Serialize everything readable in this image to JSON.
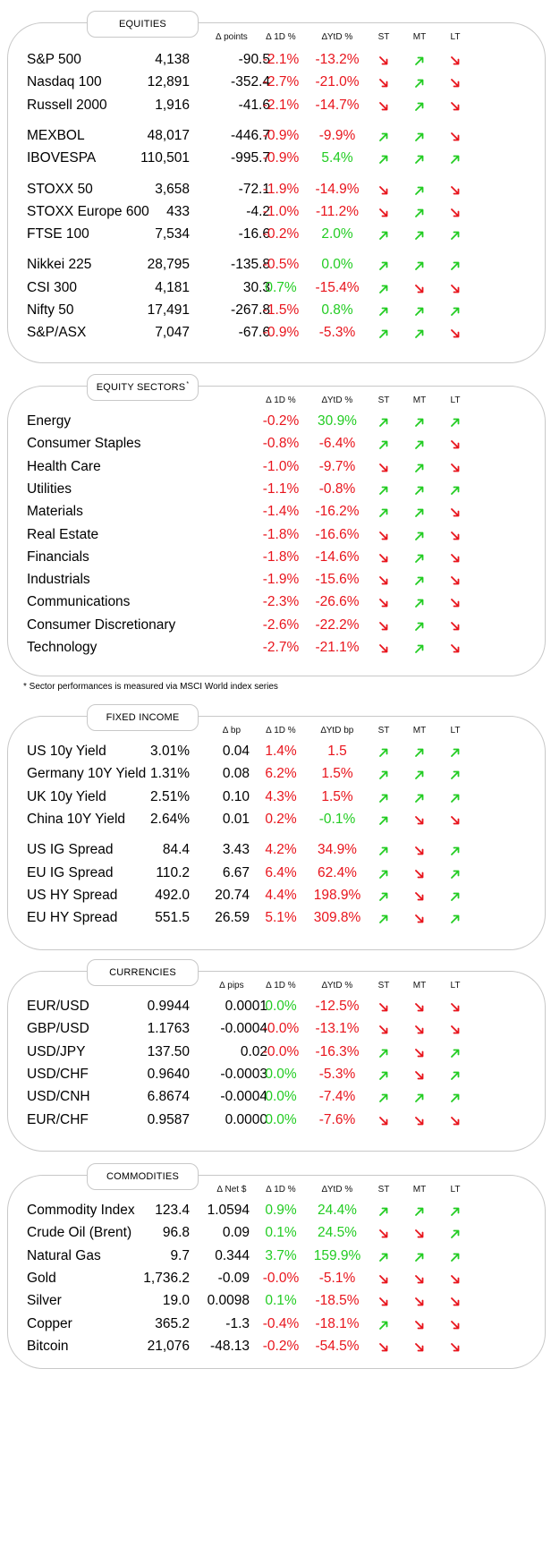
{
  "panels": [
    {
      "id": "equities",
      "title": "EQUITIES",
      "sup": "",
      "headers": {
        "change": "∆ points",
        "d1": "∆ 1D %",
        "ytd": "∆YtD %",
        "st": "ST",
        "mt": "MT",
        "lt": "LT"
      },
      "groups": [
        [
          {
            "name": "S&P 500",
            "value": "4,138",
            "change": "-90.5",
            "d1": "-2.1%",
            "d1c": "red",
            "ytd": "-13.2%",
            "ytdc": "red",
            "st": "down",
            "mt": "up",
            "lt": "down"
          },
          {
            "name": "Nasdaq 100",
            "value": "12,891",
            "change": "-352.4",
            "d1": "-2.7%",
            "d1c": "red",
            "ytd": "-21.0%",
            "ytdc": "red",
            "st": "down",
            "mt": "up",
            "lt": "down"
          },
          {
            "name": "Russell 2000",
            "value": "1,916",
            "change": "-41.6",
            "d1": "-2.1%",
            "d1c": "red",
            "ytd": "-14.7%",
            "ytdc": "red",
            "st": "down",
            "mt": "up",
            "lt": "down"
          }
        ],
        [
          {
            "name": "MEXBOL",
            "value": "48,017",
            "change": "-446.7",
            "d1": "-0.9%",
            "d1c": "red",
            "ytd": "-9.9%",
            "ytdc": "red",
            "st": "up",
            "mt": "up",
            "lt": "down"
          },
          {
            "name": "IBOVESPA",
            "value": "110,501",
            "change": "-995.7",
            "d1": "-0.9%",
            "d1c": "red",
            "ytd": "5.4%",
            "ytdc": "grn",
            "st": "up",
            "mt": "up",
            "lt": "up"
          }
        ],
        [
          {
            "name": "STOXX 50",
            "value": "3,658",
            "change": "-72.1",
            "d1": "-1.9%",
            "d1c": "red",
            "ytd": "-14.9%",
            "ytdc": "red",
            "st": "down",
            "mt": "up",
            "lt": "down"
          },
          {
            "name": "STOXX Europe 600",
            "value": "433",
            "change": "-4.2",
            "d1": "-1.0%",
            "d1c": "red",
            "ytd": "-11.2%",
            "ytdc": "red",
            "st": "down",
            "mt": "up",
            "lt": "down"
          },
          {
            "name": "FTSE 100",
            "value": "7,534",
            "change": "-16.6",
            "d1": "-0.2%",
            "d1c": "red",
            "ytd": "2.0%",
            "ytdc": "grn",
            "st": "up",
            "mt": "up",
            "lt": "up"
          }
        ],
        [
          {
            "name": "Nikkei 225",
            "value": "28,795",
            "change": "-135.8",
            "d1": "-0.5%",
            "d1c": "red",
            "ytd": "0.0%",
            "ytdc": "grn",
            "st": "up",
            "mt": "up",
            "lt": "up"
          },
          {
            "name": "CSI 300",
            "value": "4,181",
            "change": "30.3",
            "d1": "0.7%",
            "d1c": "grn",
            "ytd": "-15.4%",
            "ytdc": "red",
            "st": "up",
            "mt": "down",
            "lt": "down"
          },
          {
            "name": "Nifty  50",
            "value": "17,491",
            "change": "-267.8",
            "d1": "-1.5%",
            "d1c": "red",
            "ytd": "0.8%",
            "ytdc": "grn",
            "st": "up",
            "mt": "up",
            "lt": "up"
          },
          {
            "name": "S&P/ASX",
            "value": "7,047",
            "change": "-67.6",
            "d1": "-0.9%",
            "d1c": "red",
            "ytd": "-5.3%",
            "ytdc": "red",
            "st": "up",
            "mt": "up",
            "lt": "down"
          }
        ]
      ]
    },
    {
      "id": "sectors",
      "title": "EQUITY SECTORS",
      "sup": "*",
      "headers": {
        "change": "",
        "d1": "∆ 1D %",
        "ytd": "∆YtD %",
        "st": "ST",
        "mt": "MT",
        "lt": "LT"
      },
      "groups": [
        [
          {
            "name": "Energy",
            "value": "",
            "change": "",
            "d1": "-0.2%",
            "d1c": "red",
            "ytd": "30.9%",
            "ytdc": "grn",
            "st": "up",
            "mt": "up",
            "lt": "up"
          },
          {
            "name": "Consumer Staples",
            "value": "",
            "change": "",
            "d1": "-0.8%",
            "d1c": "red",
            "ytd": "-6.4%",
            "ytdc": "red",
            "st": "up",
            "mt": "up",
            "lt": "down"
          },
          {
            "name": "Health Care",
            "value": "",
            "change": "",
            "d1": "-1.0%",
            "d1c": "red",
            "ytd": "-9.7%",
            "ytdc": "red",
            "st": "down",
            "mt": "up",
            "lt": "down"
          },
          {
            "name": "Utilities",
            "value": "",
            "change": "",
            "d1": "-1.1%",
            "d1c": "red",
            "ytd": "-0.8%",
            "ytdc": "red",
            "st": "up",
            "mt": "up",
            "lt": "up"
          },
          {
            "name": "Materials",
            "value": "",
            "change": "",
            "d1": "-1.4%",
            "d1c": "red",
            "ytd": "-16.2%",
            "ytdc": "red",
            "st": "up",
            "mt": "up",
            "lt": "down"
          },
          {
            "name": "Real Estate",
            "value": "",
            "change": "",
            "d1": "-1.8%",
            "d1c": "red",
            "ytd": "-16.6%",
            "ytdc": "red",
            "st": "down",
            "mt": "up",
            "lt": "down"
          },
          {
            "name": "Financials",
            "value": "",
            "change": "",
            "d1": "-1.8%",
            "d1c": "red",
            "ytd": "-14.6%",
            "ytdc": "red",
            "st": "down",
            "mt": "up",
            "lt": "down"
          },
          {
            "name": "Industrials",
            "value": "",
            "change": "",
            "d1": "-1.9%",
            "d1c": "red",
            "ytd": "-15.6%",
            "ytdc": "red",
            "st": "down",
            "mt": "up",
            "lt": "down"
          },
          {
            "name": "Communications",
            "value": "",
            "change": "",
            "d1": "-2.3%",
            "d1c": "red",
            "ytd": "-26.6%",
            "ytdc": "red",
            "st": "down",
            "mt": "up",
            "lt": "down"
          },
          {
            "name": "Consumer Discretionary",
            "value": "",
            "change": "",
            "d1": "-2.6%",
            "d1c": "red",
            "ytd": "-22.2%",
            "ytdc": "red",
            "st": "down",
            "mt": "up",
            "lt": "down"
          },
          {
            "name": "Technology",
            "value": "",
            "change": "",
            "d1": "-2.7%",
            "d1c": "red",
            "ytd": "-21.1%",
            "ytdc": "red",
            "st": "down",
            "mt": "up",
            "lt": "down"
          }
        ]
      ]
    },
    {
      "id": "fixed-income",
      "title": "FIXED INCOME",
      "sup": "",
      "headers": {
        "change": "∆ bp",
        "d1": "∆ 1D %",
        "ytd": "∆YtD bp",
        "st": "ST",
        "mt": "MT",
        "lt": "LT"
      },
      "groups": [
        [
          {
            "name": "US 10y Yield",
            "value": "3.01%",
            "change": "0.04",
            "d1": "1.4%",
            "d1c": "red",
            "ytd": "1.5",
            "ytdc": "red",
            "st": "up",
            "mt": "up",
            "lt": "up"
          },
          {
            "name": "Germany 10Y Yield",
            "value": "1.31%",
            "change": "0.08",
            "d1": "6.2%",
            "d1c": "red",
            "ytd": "1.5%",
            "ytdc": "red",
            "st": "up",
            "mt": "up",
            "lt": "up"
          },
          {
            "name": "UK 10y Yield",
            "value": "2.51%",
            "change": "0.10",
            "d1": "4.3%",
            "d1c": "red",
            "ytd": "1.5%",
            "ytdc": "red",
            "st": "up",
            "mt": "up",
            "lt": "up"
          },
          {
            "name": "China 10Y Yield",
            "value": "2.64%",
            "change": "0.01",
            "d1": "0.2%",
            "d1c": "red",
            "ytd": "-0.1%",
            "ytdc": "grn",
            "st": "up",
            "mt": "down",
            "lt": "down"
          }
        ],
        [
          {
            "name": "US IG Spread",
            "value": "84.4",
            "change": "3.43",
            "d1": "4.2%",
            "d1c": "red",
            "ytd": "34.9%",
            "ytdc": "red",
            "st": "up",
            "mt": "down",
            "lt": "up"
          },
          {
            "name": "EU IG Spread",
            "value": "110.2",
            "change": "6.67",
            "d1": "6.4%",
            "d1c": "red",
            "ytd": "62.4%",
            "ytdc": "red",
            "st": "up",
            "mt": "down",
            "lt": "up"
          },
          {
            "name": "US HY Spread",
            "value": "492.0",
            "change": "20.74",
            "d1": "4.4%",
            "d1c": "red",
            "ytd": "198.9%",
            "ytdc": "red",
            "st": "up",
            "mt": "down",
            "lt": "up"
          },
          {
            "name": "EU HY Spread",
            "value": "551.5",
            "change": "26.59",
            "d1": "5.1%",
            "d1c": "red",
            "ytd": "309.8%",
            "ytdc": "red",
            "st": "up",
            "mt": "down",
            "lt": "up"
          }
        ]
      ]
    },
    {
      "id": "currencies",
      "title": "CURRENCIES",
      "sup": "",
      "headers": {
        "change": "∆ pips",
        "d1": "∆ 1D %",
        "ytd": "∆YtD %",
        "st": "ST",
        "mt": "MT",
        "lt": "LT"
      },
      "groups": [
        [
          {
            "name": "EUR/USD",
            "value": "0.9944",
            "change": "0.0001",
            "d1": "0.0%",
            "d1c": "grn",
            "ytd": "-12.5%",
            "ytdc": "red",
            "st": "down",
            "mt": "down",
            "lt": "down"
          },
          {
            "name": "GBP/USD",
            "value": "1.1763",
            "change": "-0.0004",
            "d1": "-0.0%",
            "d1c": "red",
            "ytd": "-13.1%",
            "ytdc": "red",
            "st": "down",
            "mt": "down",
            "lt": "down"
          },
          {
            "name": "USD/JPY",
            "value": "137.50",
            "change": "0.02",
            "d1": "-0.0%",
            "d1c": "red",
            "ytd": "-16.3%",
            "ytdc": "red",
            "st": "up",
            "mt": "down",
            "lt": "up"
          },
          {
            "name": "USD/CHF",
            "value": "0.9640",
            "change": "-0.0003",
            "d1": "0.0%",
            "d1c": "grn",
            "ytd": "-5.3%",
            "ytdc": "red",
            "st": "up",
            "mt": "down",
            "lt": "up"
          },
          {
            "name": "USD/CNH",
            "value": "6.8674",
            "change": "-0.0004",
            "d1": "0.0%",
            "d1c": "grn",
            "ytd": "-7.4%",
            "ytdc": "red",
            "st": "up",
            "mt": "up",
            "lt": "up"
          },
          {
            "name": "EUR/CHF",
            "value": "0.9587",
            "change": "0.0000",
            "d1": "0.0%",
            "d1c": "grn",
            "ytd": "-7.6%",
            "ytdc": "red",
            "st": "down",
            "mt": "down",
            "lt": "down"
          }
        ]
      ]
    },
    {
      "id": "commodities",
      "title": "COMMODITIES",
      "sup": "",
      "headers": {
        "change": "∆ Net $",
        "d1": "∆ 1D %",
        "ytd": "∆YtD %",
        "st": "ST",
        "mt": "MT",
        "lt": "LT"
      },
      "groups": [
        [
          {
            "name": "Commodity Index",
            "value": "123.4",
            "change": "1.0594",
            "d1": "0.9%",
            "d1c": "grn",
            "ytd": "24.4%",
            "ytdc": "grn",
            "st": "up",
            "mt": "up",
            "lt": "up"
          },
          {
            "name": "Crude Oil (Brent)",
            "value": "96.8",
            "change": "0.09",
            "d1": "0.1%",
            "d1c": "grn",
            "ytd": "24.5%",
            "ytdc": "grn",
            "st": "down",
            "mt": "down",
            "lt": "up"
          },
          {
            "name": "Natural Gas",
            "value": "9.7",
            "change": "0.344",
            "d1": "3.7%",
            "d1c": "grn",
            "ytd": "159.9%",
            "ytdc": "grn",
            "st": "up",
            "mt": "up",
            "lt": "up"
          },
          {
            "name": "Gold",
            "value": "1,736.2",
            "change": "-0.09",
            "d1": "-0.0%",
            "d1c": "red",
            "ytd": "-5.1%",
            "ytdc": "red",
            "st": "down",
            "mt": "down",
            "lt": "down"
          },
          {
            "name": "Silver",
            "value": "19.0",
            "change": "0.0098",
            "d1": "0.1%",
            "d1c": "grn",
            "ytd": "-18.5%",
            "ytdc": "red",
            "st": "down",
            "mt": "down",
            "lt": "down"
          },
          {
            "name": "Copper",
            "value": "365.2",
            "change": "-1.3",
            "d1": "-0.4%",
            "d1c": "red",
            "ytd": "-18.1%",
            "ytdc": "red",
            "st": "up",
            "mt": "down",
            "lt": "down"
          },
          {
            "name": "Bitcoin",
            "value": "21,076",
            "change": "-48.13",
            "d1": "-0.2%",
            "d1c": "red",
            "ytd": "-54.5%",
            "ytdc": "red",
            "st": "down",
            "mt": "down",
            "lt": "down"
          }
        ]
      ]
    }
  ],
  "footnote": "* Sector performances is measured via MSCI World index series",
  "colors": {
    "red": "#e8141c",
    "green": "#22cc22",
    "border": "#c8c8c8"
  },
  "icons": {
    "up": "arrow-up-right-icon",
    "down": "arrow-down-right-icon"
  }
}
